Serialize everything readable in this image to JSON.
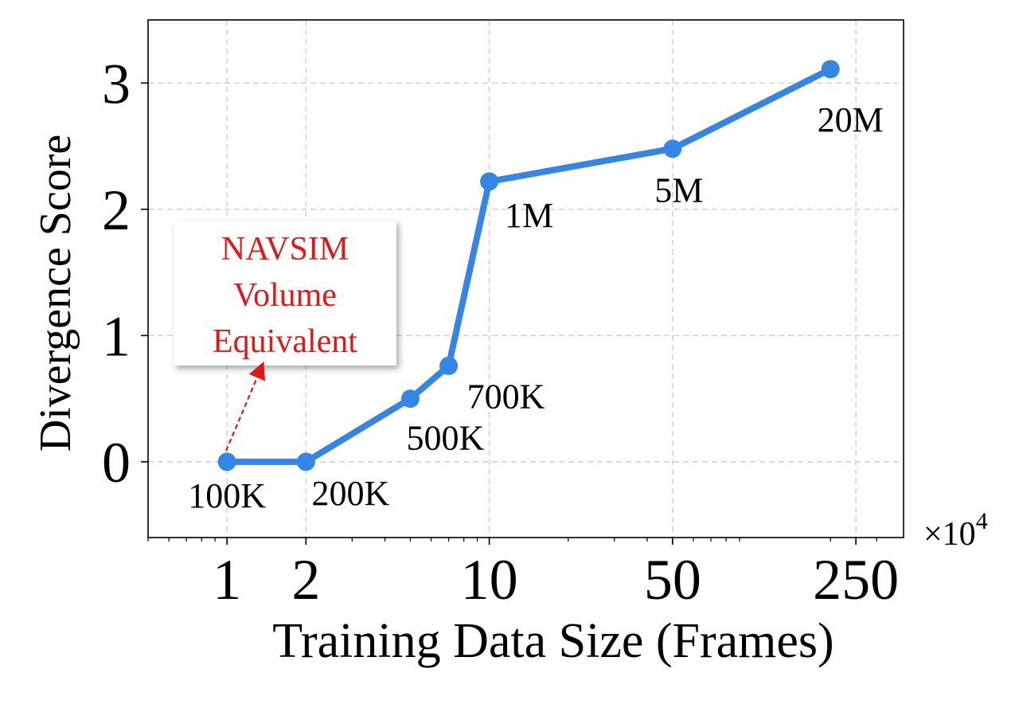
{
  "chart_data": {
    "type": "line",
    "title": "",
    "xlabel": "Training Data Size (Frames)",
    "ylabel": "Divergence Score",
    "xscale": "log",
    "x_multiplier": "×10",
    "x_multiplier_exponent": "4",
    "xlim": [
      0.5,
      380
    ],
    "ylim": [
      -0.6,
      3.5
    ],
    "xticks": [
      1,
      2,
      10,
      50,
      250
    ],
    "xtick_labels": [
      "1",
      "2",
      "10",
      "50",
      "250"
    ],
    "yticks": [
      0,
      1,
      2,
      3
    ],
    "ytick_labels": [
      "0",
      "1",
      "2",
      "3"
    ],
    "grid": true,
    "color": "#3585e5",
    "series": [
      {
        "name": "Divergence Score",
        "x": [
          1,
          2,
          5,
          7,
          10,
          50,
          200
        ],
        "y": [
          0,
          0,
          0.5,
          0.76,
          2.22,
          2.48,
          3.11
        ],
        "point_labels": [
          "100K",
          "200K",
          "500K",
          "700K",
          "1M",
          "5M",
          "20M"
        ]
      }
    ],
    "annotation": {
      "lines": [
        "NAVSIM",
        "Volume",
        "Equivalent"
      ],
      "color": "#e01818",
      "arrow_from": "100K"
    }
  }
}
